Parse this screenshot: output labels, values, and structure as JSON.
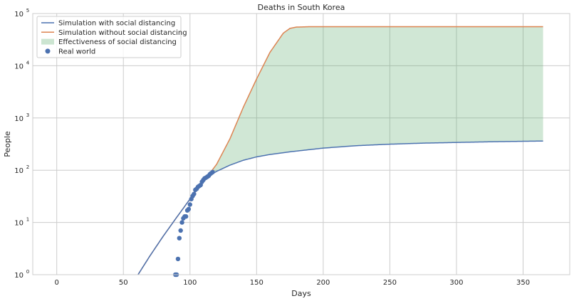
{
  "chart_data": {
    "type": "line",
    "title": "Deaths in South Korea",
    "xlabel": "Days",
    "ylabel": "People",
    "xlim": [
      -18,
      385
    ],
    "ylim": [
      1,
      100000
    ],
    "yscale": "log",
    "grid": true,
    "legend_position": "top-left",
    "x_ticks": [
      0,
      50,
      100,
      150,
      200,
      250,
      300,
      350
    ],
    "y_ticks": [
      {
        "value": 1,
        "base": "10",
        "exp": "0"
      },
      {
        "value": 10,
        "base": "10",
        "exp": "1"
      },
      {
        "value": 100,
        "base": "10",
        "exp": "2"
      },
      {
        "value": 1000,
        "base": "10",
        "exp": "3"
      },
      {
        "value": 10000,
        "base": "10",
        "exp": "4"
      },
      {
        "value": 100000,
        "base": "10",
        "exp": "5"
      }
    ],
    "colors": {
      "with_sd": "#4c72b0",
      "without_sd": "#dd8452",
      "fill": "#55a868",
      "real": "#4c72b0"
    },
    "legend": [
      "Simulation with social distancing",
      "Simulation without social distancing",
      "Effectiveness of social distancing",
      "Real world"
    ],
    "series": [
      {
        "name": "Simulation with social distancing",
        "x": [
          61,
          70,
          80,
          90,
          100,
          105,
          110,
          115,
          120,
          130,
          140,
          150,
          160,
          175,
          200,
          225,
          250,
          275,
          300,
          325,
          350,
          365
        ],
        "y": [
          1,
          2.3,
          5.5,
          12.5,
          28,
          43,
          62,
          80,
          95,
          125,
          155,
          180,
          200,
          225,
          265,
          295,
          315,
          330,
          340,
          350,
          358,
          362
        ]
      },
      {
        "name": "Simulation without social distancing",
        "x": [
          61,
          70,
          80,
          90,
          100,
          110,
          115,
          120,
          130,
          140,
          150,
          160,
          170,
          175,
          180,
          190,
          200,
          250,
          300,
          365
        ],
        "y": [
          1,
          2.3,
          5.5,
          12.5,
          28,
          62,
          88,
          130,
          400,
          1600,
          5600,
          18000,
          42000,
          52000,
          55000,
          56000,
          56000,
          56000,
          56000,
          56000
        ]
      },
      {
        "name": "Real world",
        "x": [
          89,
          90,
          91,
          92,
          93,
          94,
          95,
          96,
          97,
          98,
          99,
          100,
          101,
          102,
          103,
          104,
          105,
          106,
          107,
          108,
          109,
          110,
          111,
          112,
          113,
          114,
          115,
          116,
          117
        ],
        "y": [
          1,
          1,
          2,
          5,
          7,
          10,
          12,
          13,
          13,
          17,
          18,
          22,
          28,
          32,
          35,
          42,
          44,
          48,
          50,
          52,
          60,
          65,
          70,
          72,
          75,
          78,
          84,
          88,
          92
        ]
      }
    ]
  }
}
